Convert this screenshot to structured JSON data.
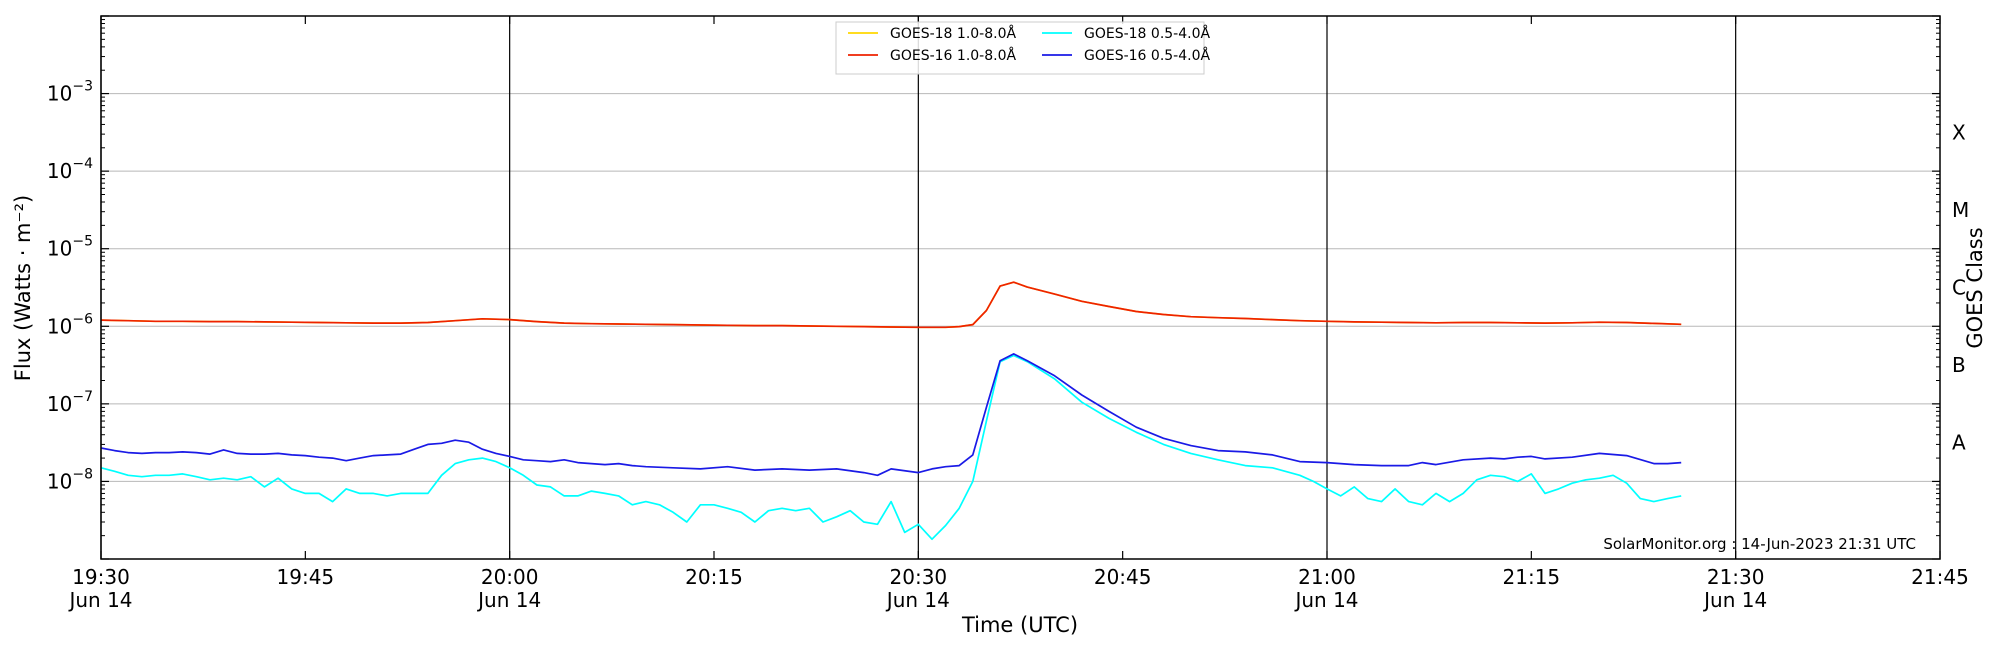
{
  "chart_data": {
    "type": "line",
    "title": "",
    "xlabel": "Time (UTC)",
    "ylabel": "Flux (Watts · m⁻²)",
    "y2label": "GOES Class",
    "annotation": "SolarMonitor.org : 14-Jun-2023 21:31 UTC",
    "y_scale": "log",
    "ylim": [
      1e-09,
      0.01
    ],
    "xlim": [
      "19:30",
      "21:45"
    ],
    "grid": true,
    "legend_position": "top-center",
    "x_ticks": [
      {
        "time": "19:30",
        "label": "19:30",
        "sublabel": "Jun 14"
      },
      {
        "time": "19:45",
        "label": "19:45",
        "sublabel": ""
      },
      {
        "time": "20:00",
        "label": "20:00",
        "sublabel": "Jun 14"
      },
      {
        "time": "20:15",
        "label": "20:15",
        "sublabel": ""
      },
      {
        "time": "20:30",
        "label": "20:30",
        "sublabel": "Jun 14"
      },
      {
        "time": "20:45",
        "label": "20:45",
        "sublabel": ""
      },
      {
        "time": "21:00",
        "label": "21:00",
        "sublabel": "Jun 14"
      },
      {
        "time": "21:15",
        "label": "21:15",
        "sublabel": ""
      },
      {
        "time": "21:30",
        "label": "21:30",
        "sublabel": "Jun 14"
      },
      {
        "time": "21:45",
        "label": "21:45",
        "sublabel": ""
      }
    ],
    "vertical_lines": [
      "19:30",
      "20:00",
      "20:30",
      "21:00",
      "21:30"
    ],
    "y_ticks": [
      {
        "exp": -3,
        "base": "10",
        "sup": "−3"
      },
      {
        "exp": -4,
        "base": "10",
        "sup": "−4"
      },
      {
        "exp": -5,
        "base": "10",
        "sup": "−5"
      },
      {
        "exp": -6,
        "base": "10",
        "sup": "−6"
      },
      {
        "exp": -7,
        "base": "10",
        "sup": "−7"
      },
      {
        "exp": -8,
        "base": "10",
        "sup": "−8"
      }
    ],
    "goes_classes": [
      {
        "label": "X",
        "exp": -3.5
      },
      {
        "label": "M",
        "exp": -4.5
      },
      {
        "label": "C",
        "exp": -5.5
      },
      {
        "label": "B",
        "exp": -6.5
      },
      {
        "label": "A",
        "exp": -7.5
      }
    ],
    "legend": [
      {
        "label": "GOES-18 1.0-8.0Å",
        "color": "#ffd700"
      },
      {
        "label": "GOES-16 1.0-8.0Å",
        "color": "#ee2200"
      },
      {
        "label": "GOES-18 0.5-4.0Å",
        "color": "#00ffff"
      },
      {
        "label": "GOES-16 0.5-4.0Å",
        "color": "#1a1ae6"
      }
    ],
    "series": [
      {
        "name": "GOES-18 1.0-8.0Å",
        "color": "#ffd700",
        "x": [
          "19:30",
          "19:32",
          "19:34",
          "19:36",
          "19:38",
          "19:40",
          "19:42",
          "19:44",
          "19:46",
          "19:48",
          "19:50",
          "19:52",
          "19:54",
          "19:56",
          "19:58",
          "20:00",
          "20:02",
          "20:04",
          "20:06",
          "20:08",
          "20:10",
          "20:12",
          "20:14",
          "20:16",
          "20:18",
          "20:20",
          "20:22",
          "20:24",
          "20:26",
          "20:28",
          "20:30",
          "20:32",
          "20:33",
          "20:34",
          "20:35",
          "20:36",
          "20:37",
          "20:38",
          "20:40",
          "20:42",
          "20:44",
          "20:46",
          "20:48",
          "20:50",
          "20:52",
          "20:54",
          "20:56",
          "20:58",
          "21:00",
          "21:02",
          "21:04",
          "21:06",
          "21:08",
          "21:10",
          "21:12",
          "21:14",
          "21:16",
          "21:18",
          "21:20",
          "21:22",
          "21:24",
          "21:26"
        ],
        "y": [
          1.2e-06,
          1.18e-06,
          1.16e-06,
          1.16e-06,
          1.15e-06,
          1.15e-06,
          1.14e-06,
          1.13e-06,
          1.12e-06,
          1.11e-06,
          1.1e-06,
          1.1e-06,
          1.12e-06,
          1.18e-06,
          1.25e-06,
          1.22e-06,
          1.15e-06,
          1.1e-06,
          1.08e-06,
          1.07e-06,
          1.06e-06,
          1.05e-06,
          1.04e-06,
          1.03e-06,
          1.02e-06,
          1.02e-06,
          1.01e-06,
          1e-06,
          9.9e-07,
          9.8e-07,
          9.7e-07,
          9.7e-07,
          9.9e-07,
          1.05e-06,
          1.6e-06,
          3.3e-06,
          3.7e-06,
          3.2e-06,
          2.6e-06,
          2.1e-06,
          1.8e-06,
          1.55e-06,
          1.42e-06,
          1.33e-06,
          1.29e-06,
          1.26e-06,
          1.22e-06,
          1.18e-06,
          1.16e-06,
          1.14e-06,
          1.13e-06,
          1.12e-06,
          1.11e-06,
          1.12e-06,
          1.12e-06,
          1.11e-06,
          1.1e-06,
          1.11e-06,
          1.13e-06,
          1.12e-06,
          1.09e-06,
          1.06e-06
        ]
      },
      {
        "name": "GOES-16 1.0-8.0Å",
        "color": "#ee2200",
        "x": [
          "19:30",
          "19:32",
          "19:34",
          "19:36",
          "19:38",
          "19:40",
          "19:42",
          "19:44",
          "19:46",
          "19:48",
          "19:50",
          "19:52",
          "19:54",
          "19:56",
          "19:58",
          "20:00",
          "20:02",
          "20:04",
          "20:06",
          "20:08",
          "20:10",
          "20:12",
          "20:14",
          "20:16",
          "20:18",
          "20:20",
          "20:22",
          "20:24",
          "20:26",
          "20:28",
          "20:30",
          "20:32",
          "20:33",
          "20:34",
          "20:35",
          "20:36",
          "20:37",
          "20:38",
          "20:40",
          "20:42",
          "20:44",
          "20:46",
          "20:48",
          "20:50",
          "20:52",
          "20:54",
          "20:56",
          "20:58",
          "21:00",
          "21:02",
          "21:04",
          "21:06",
          "21:08",
          "21:10",
          "21:12",
          "21:14",
          "21:16",
          "21:18",
          "21:20",
          "21:22",
          "21:24",
          "21:26"
        ],
        "y": [
          1.2e-06,
          1.18e-06,
          1.16e-06,
          1.16e-06,
          1.15e-06,
          1.15e-06,
          1.14e-06,
          1.13e-06,
          1.12e-06,
          1.11e-06,
          1.1e-06,
          1.1e-06,
          1.12e-06,
          1.18e-06,
          1.25e-06,
          1.22e-06,
          1.15e-06,
          1.1e-06,
          1.08e-06,
          1.07e-06,
          1.06e-06,
          1.05e-06,
          1.04e-06,
          1.03e-06,
          1.02e-06,
          1.02e-06,
          1.01e-06,
          1e-06,
          9.9e-07,
          9.8e-07,
          9.7e-07,
          9.7e-07,
          9.9e-07,
          1.05e-06,
          1.6e-06,
          3.3e-06,
          3.7e-06,
          3.2e-06,
          2.6e-06,
          2.1e-06,
          1.8e-06,
          1.55e-06,
          1.42e-06,
          1.33e-06,
          1.29e-06,
          1.26e-06,
          1.22e-06,
          1.18e-06,
          1.16e-06,
          1.14e-06,
          1.13e-06,
          1.12e-06,
          1.11e-06,
          1.12e-06,
          1.12e-06,
          1.11e-06,
          1.1e-06,
          1.11e-06,
          1.13e-06,
          1.12e-06,
          1.09e-06,
          1.06e-06
        ]
      },
      {
        "name": "GOES-18 0.5-4.0Å",
        "color": "#00ffff",
        "x": [
          "19:30",
          "19:31",
          "19:32",
          "19:33",
          "19:34",
          "19:35",
          "19:36",
          "19:37",
          "19:38",
          "19:39",
          "19:40",
          "19:41",
          "19:42",
          "19:43",
          "19:44",
          "19:45",
          "19:46",
          "19:47",
          "19:48",
          "19:49",
          "19:50",
          "19:51",
          "19:52",
          "19:53",
          "19:54",
          "19:55",
          "19:56",
          "19:57",
          "19:58",
          "19:59",
          "20:00",
          "20:01",
          "20:02",
          "20:03",
          "20:04",
          "20:05",
          "20:06",
          "20:07",
          "20:08",
          "20:09",
          "20:10",
          "20:11",
          "20:12",
          "20:13",
          "20:14",
          "20:15",
          "20:16",
          "20:17",
          "20:18",
          "20:19",
          "20:20",
          "20:21",
          "20:22",
          "20:23",
          "20:24",
          "20:25",
          "20:26",
          "20:27",
          "20:28",
          "20:29",
          "20:30",
          "20:31",
          "20:32",
          "20:33",
          "20:34",
          "20:35",
          "20:36",
          "20:37",
          "20:38",
          "20:40",
          "20:42",
          "20:44",
          "20:46",
          "20:48",
          "20:50",
          "20:52",
          "20:54",
          "20:56",
          "20:58",
          "20:59",
          "21:00",
          "21:01",
          "21:02",
          "21:03",
          "21:04",
          "21:05",
          "21:06",
          "21:07",
          "21:08",
          "21:09",
          "21:10",
          "21:11",
          "21:12",
          "21:13",
          "21:14",
          "21:15",
          "21:16",
          "21:17",
          "21:18",
          "21:19",
          "21:20",
          "21:21",
          "21:22",
          "21:23",
          "21:24",
          "21:25",
          "21:26"
        ],
        "y": [
          1.5e-08,
          1.35e-08,
          1.2e-08,
          1.15e-08,
          1.2e-08,
          1.2e-08,
          1.25e-08,
          1.15e-08,
          1.05e-08,
          1.1e-08,
          1.05e-08,
          1.15e-08,
          8.5e-09,
          1.1e-08,
          8e-09,
          7e-09,
          7e-09,
          5.5e-09,
          8e-09,
          7e-09,
          7e-09,
          6.5e-09,
          7e-09,
          7e-09,
          7e-09,
          1.2e-08,
          1.7e-08,
          1.9e-08,
          2e-08,
          1.8e-08,
          1.5e-08,
          1.2e-08,
          9e-09,
          8.5e-09,
          6.5e-09,
          6.5e-09,
          7.5e-09,
          7e-09,
          6.5e-09,
          5e-09,
          5.5e-09,
          5e-09,
          4e-09,
          3e-09,
          5e-09,
          5e-09,
          4.5e-09,
          4e-09,
          3e-09,
          4.2e-09,
          4.5e-09,
          4.2e-09,
          4.5e-09,
          3e-09,
          3.5e-09,
          4.2e-09,
          3e-09,
          2.8e-09,
          5.5e-09,
          2.2e-09,
          2.8e-09,
          1.8e-09,
          2.7e-09,
          4.5e-09,
          1e-08,
          6e-08,
          3.5e-07,
          4.2e-07,
          3.5e-07,
          2.1e-07,
          1.05e-07,
          6.5e-08,
          4.3e-08,
          3e-08,
          2.3e-08,
          1.9e-08,
          1.6e-08,
          1.5e-08,
          1.2e-08,
          1e-08,
          8e-09,
          6.5e-09,
          8.5e-09,
          6e-09,
          5.5e-09,
          8e-09,
          5.5e-09,
          5e-09,
          7e-09,
          5.5e-09,
          7e-09,
          1.05e-08,
          1.2e-08,
          1.15e-08,
          1e-08,
          1.25e-08,
          7e-09,
          8e-09,
          9.5e-09,
          1.05e-08,
          1.1e-08,
          1.2e-08,
          9.5e-09,
          6e-09,
          5.5e-09,
          6e-09,
          6.5e-09
        ]
      },
      {
        "name": "GOES-16 0.5-4.0Å",
        "color": "#1a1ae6",
        "x": [
          "19:30",
          "19:31",
          "19:32",
          "19:33",
          "19:34",
          "19:35",
          "19:36",
          "19:37",
          "19:38",
          "19:39",
          "19:40",
          "19:41",
          "19:42",
          "19:43",
          "19:44",
          "19:45",
          "19:46",
          "19:47",
          "19:48",
          "19:49",
          "19:50",
          "19:51",
          "19:52",
          "19:53",
          "19:54",
          "19:55",
          "19:56",
          "19:57",
          "19:58",
          "19:59",
          "20:00",
          "20:01",
          "20:02",
          "20:03",
          "20:04",
          "20:05",
          "20:06",
          "20:07",
          "20:08",
          "20:09",
          "20:10",
          "20:12",
          "20:14",
          "20:16",
          "20:18",
          "20:20",
          "20:22",
          "20:24",
          "20:26",
          "20:27",
          "20:28",
          "20:30",
          "20:31",
          "20:32",
          "20:33",
          "20:34",
          "20:35",
          "20:36",
          "20:37",
          "20:38",
          "20:40",
          "20:42",
          "20:44",
          "20:46",
          "20:48",
          "20:50",
          "20:52",
          "20:54",
          "20:56",
          "20:58",
          "21:00",
          "21:02",
          "21:04",
          "21:06",
          "21:07",
          "21:08",
          "21:10",
          "21:12",
          "21:13",
          "21:14",
          "21:15",
          "21:16",
          "21:18",
          "21:20",
          "21:22",
          "21:24",
          "21:25",
          "21:26"
        ],
        "y": [
          2.7e-08,
          2.5e-08,
          2.35e-08,
          2.3e-08,
          2.35e-08,
          2.35e-08,
          2.4e-08,
          2.35e-08,
          2.25e-08,
          2.55e-08,
          2.3e-08,
          2.25e-08,
          2.25e-08,
          2.3e-08,
          2.2e-08,
          2.15e-08,
          2.05e-08,
          2e-08,
          1.85e-08,
          2e-08,
          2.15e-08,
          2.2e-08,
          2.25e-08,
          2.6e-08,
          3e-08,
          3.1e-08,
          3.4e-08,
          3.2e-08,
          2.6e-08,
          2.3e-08,
          2.1e-08,
          1.9e-08,
          1.85e-08,
          1.8e-08,
          1.9e-08,
          1.75e-08,
          1.7e-08,
          1.65e-08,
          1.7e-08,
          1.6e-08,
          1.55e-08,
          1.5e-08,
          1.45e-08,
          1.55e-08,
          1.4e-08,
          1.45e-08,
          1.4e-08,
          1.45e-08,
          1.3e-08,
          1.2e-08,
          1.45e-08,
          1.3e-08,
          1.45e-08,
          1.55e-08,
          1.6e-08,
          2.2e-08,
          9e-08,
          3.6e-07,
          4.4e-07,
          3.6e-07,
          2.3e-07,
          1.3e-07,
          8e-08,
          5e-08,
          3.6e-08,
          2.9e-08,
          2.5e-08,
          2.4e-08,
          2.2e-08,
          1.8e-08,
          1.75e-08,
          1.65e-08,
          1.6e-08,
          1.6e-08,
          1.75e-08,
          1.65e-08,
          1.9e-08,
          2e-08,
          1.95e-08,
          2.05e-08,
          2.1e-08,
          1.95e-08,
          2.05e-08,
          2.3e-08,
          2.15e-08,
          1.7e-08,
          1.7e-08,
          1.75e-08
        ]
      }
    ]
  }
}
